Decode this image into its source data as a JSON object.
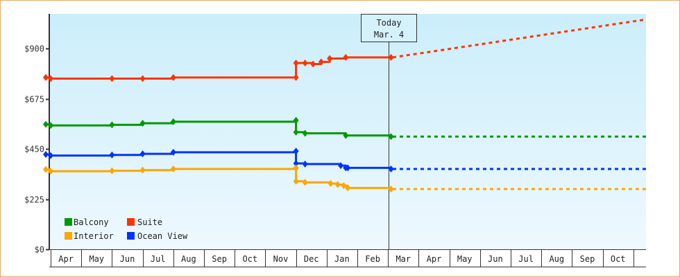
{
  "chart_data": {
    "type": "line",
    "title": "",
    "xlabel": "",
    "ylabel": "",
    "ylim": [
      0,
      1050
    ],
    "y_ticks": [
      "$0",
      "$225",
      "$450",
      "$675",
      "$900"
    ],
    "y_tick_values": [
      0,
      225,
      450,
      675,
      900
    ],
    "x_tick_labels": [
      "Apr",
      "May",
      "Jun",
      "Jul",
      "Aug",
      "Sep",
      "Oct",
      "Nov",
      "Dec",
      "Jan",
      "Feb",
      "Mar",
      "Apr",
      "May",
      "Jun",
      "Jul",
      "Aug",
      "Sep",
      "Oct"
    ],
    "grid": false,
    "legend_position": "lower-left",
    "annotation": {
      "line1": "Today",
      "line2": "Mar. 4"
    },
    "colors": {
      "Balcony": "#009900",
      "Suite": "#ff3300",
      "Interior": "#ffa500",
      "Ocean View": "#0033ff",
      "background_top": "#cdeefb",
      "background_bottom": "#edf7fd",
      "frame_border": "#e8a862"
    },
    "series": [
      {
        "name": "Suite",
        "style": "step",
        "points": [
          [
            "Mar 28",
            770
          ],
          [
            "Apr 1",
            765
          ],
          [
            "Jun 1",
            765
          ],
          [
            "Jul 1",
            765
          ],
          [
            "Aug 1",
            770
          ],
          [
            "Dec 1",
            770
          ],
          [
            "Dec 1",
            835
          ],
          [
            "Dec 10",
            835
          ],
          [
            "Dec 18",
            830
          ],
          [
            "Dec 26",
            840
          ],
          [
            "Jan 4",
            855
          ],
          [
            "Jan 20",
            860
          ],
          [
            "Mar 4",
            860
          ]
        ],
        "forecast": {
          "style": "dashed",
          "points": [
            [
              "Mar 4",
              860
            ],
            [
              "Oct 31",
              1030
            ]
          ]
        }
      },
      {
        "name": "Balcony",
        "style": "step",
        "points": [
          [
            "Mar 28",
            560
          ],
          [
            "Apr 1",
            555
          ],
          [
            "Jun 1",
            558
          ],
          [
            "Jul 1",
            565
          ],
          [
            "Aug 1",
            572
          ],
          [
            "Dec 1",
            578
          ],
          [
            "Dec 1",
            525
          ],
          [
            "Dec 10",
            520
          ],
          [
            "Jan 20",
            510
          ],
          [
            "Mar 4",
            505
          ]
        ],
        "forecast": {
          "style": "dashed",
          "points": [
            [
              "Mar 4",
              505
            ],
            [
              "Oct 31",
              505
            ]
          ]
        }
      },
      {
        "name": "Ocean View",
        "style": "step",
        "points": [
          [
            "Mar 28",
            425
          ],
          [
            "Apr 1",
            420
          ],
          [
            "Jun 1",
            423
          ],
          [
            "Jul 1",
            428
          ],
          [
            "Aug 1",
            435
          ],
          [
            "Dec 1",
            440
          ],
          [
            "Dec 1",
            385
          ],
          [
            "Dec 10",
            382
          ],
          [
            "Jan 15",
            375
          ],
          [
            "Jan 20",
            365
          ],
          [
            "Jan 22",
            365
          ],
          [
            "Mar 4",
            360
          ]
        ],
        "forecast": {
          "style": "dashed",
          "points": [
            [
              "Mar 4",
              360
            ],
            [
              "Oct 31",
              360
            ]
          ]
        }
      },
      {
        "name": "Interior",
        "style": "step",
        "points": [
          [
            "Mar 28",
            358
          ],
          [
            "Apr 1",
            350
          ],
          [
            "Jun 1",
            352
          ],
          [
            "Jul 1",
            355
          ],
          [
            "Aug 1",
            360
          ],
          [
            "Dec 1",
            365
          ],
          [
            "Dec 1",
            305
          ],
          [
            "Dec 10",
            300
          ],
          [
            "Jan 5",
            295
          ],
          [
            "Jan 12",
            290
          ],
          [
            "Jan 18",
            285
          ],
          [
            "Jan 22",
            275
          ],
          [
            "Mar 4",
            270
          ]
        ],
        "forecast": {
          "style": "dashed",
          "points": [
            [
              "Mar 4",
              270
            ],
            [
              "Oct 31",
              270
            ]
          ]
        }
      }
    ]
  },
  "legend": {
    "items": [
      {
        "label": "Balcony",
        "color": "#009900"
      },
      {
        "label": "Suite",
        "color": "#ff3300"
      },
      {
        "label": "Interior",
        "color": "#ffa500"
      },
      {
        "label": "Ocean View",
        "color": "#0033ff"
      }
    ]
  },
  "today": {
    "line1": "Today",
    "line2": "Mar. 4"
  }
}
